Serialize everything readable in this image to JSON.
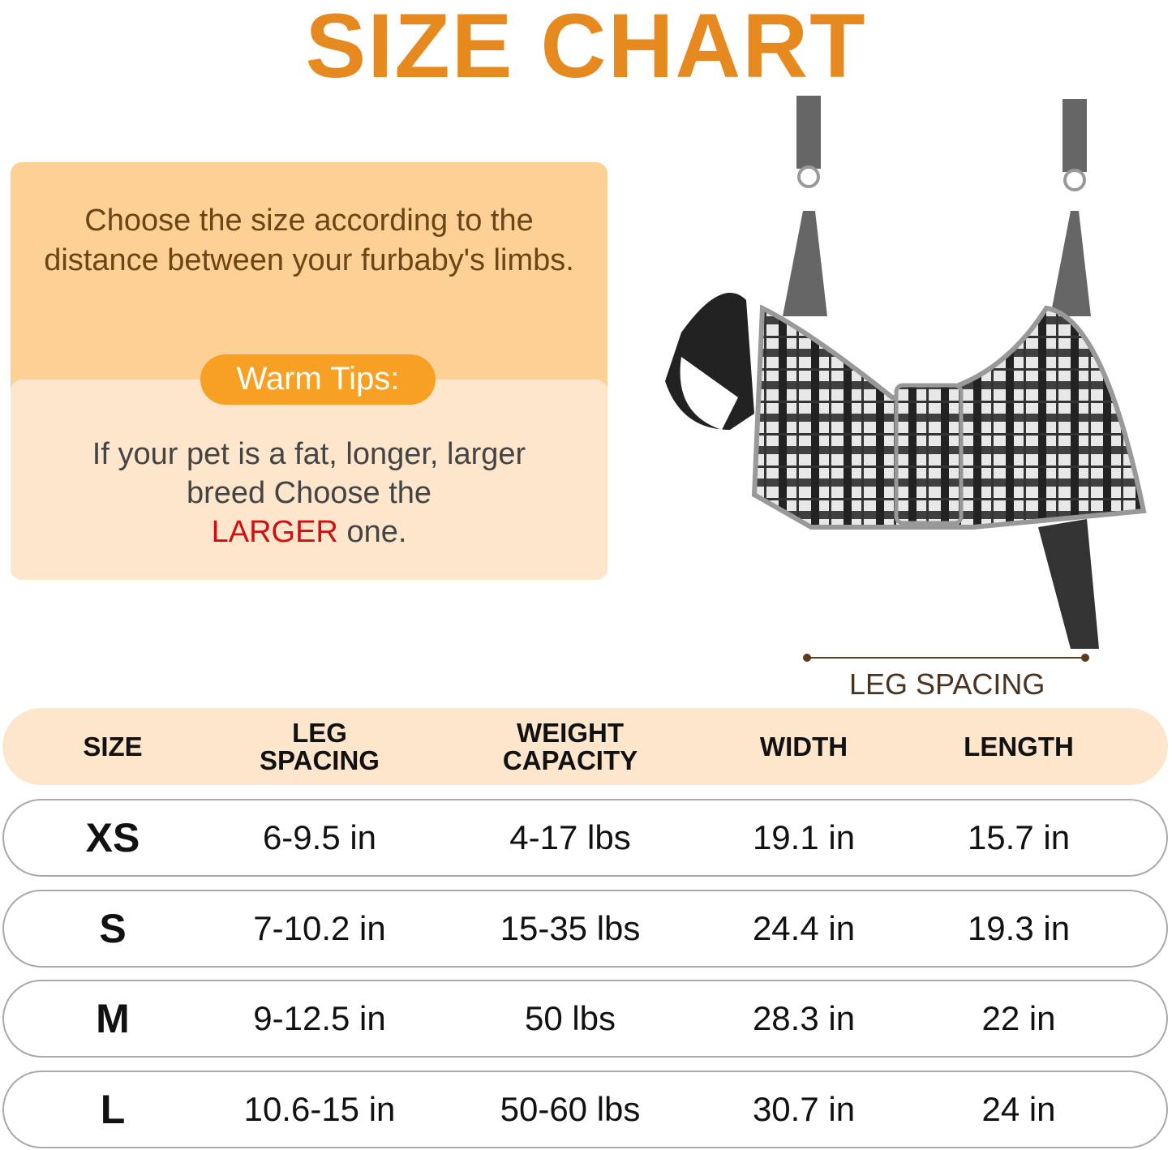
{
  "title": "SIZE CHART",
  "info": {
    "intro": "Choose the size according to the distance between your furbaby's limbs.",
    "tips_label": "Warm Tips:",
    "tip_before": "If your pet is a fat, longer, larger breed Choose the",
    "tip_highlight": "LARGER",
    "tip_after": "one."
  },
  "illustration": {
    "leg_spacing_label": "LEG SPACING"
  },
  "colors": {
    "title": "#e6891f",
    "pill": "#f7a023",
    "highlight": "#d01010",
    "panel": "#fdd195",
    "panel_light": "#fde6cc"
  },
  "table": {
    "headers": [
      "SIZE",
      "LEG\nSPACING",
      "WEIGHT\nCAPACITY",
      "WIDTH",
      "LENGTH"
    ],
    "rows": [
      [
        "XS",
        "6-9.5 in",
        "4-17 lbs",
        "19.1 in",
        "15.7 in"
      ],
      [
        "S",
        "7-10.2 in",
        "15-35 lbs",
        "24.4 in",
        "19.3 in"
      ],
      [
        "M",
        "9-12.5 in",
        "50 lbs",
        "28.3 in",
        "22 in"
      ],
      [
        "L",
        "10.6-15 in",
        "50-60 lbs",
        "30.7 in",
        "24 in"
      ]
    ]
  }
}
